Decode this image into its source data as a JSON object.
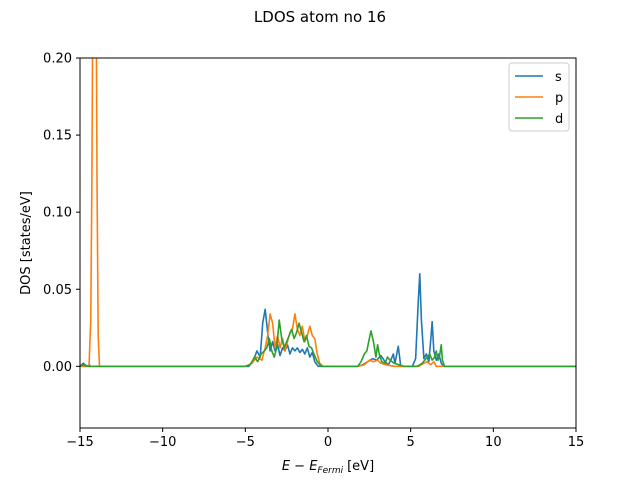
{
  "chart_data": {
    "type": "line",
    "title": "LDOS atom no 16",
    "xlabel_main": "E − E",
    "xlabel_sub": "Fermi",
    "xlabel_unit": "[eV]",
    "ylabel": "DOS [states/eV]",
    "xlim": [
      -15,
      15
    ],
    "ylim": [
      -0.04,
      0.2
    ],
    "xticks": [
      -15,
      -10,
      -5,
      0,
      5,
      10,
      15
    ],
    "xtick_labels": [
      "−15",
      "−10",
      "−5",
      "0",
      "5",
      "10",
      "15"
    ],
    "yticks": [
      0.0,
      0.05,
      0.1,
      0.15,
      0.2
    ],
    "ytick_labels": [
      "0.00",
      "0.05",
      "0.10",
      "0.15",
      "0.20"
    ],
    "grid": false,
    "legend_position": "top-right",
    "series": [
      {
        "name": "s",
        "color": "#1f77b4",
        "points": [
          [
            -15,
            0.0
          ],
          [
            -14.9,
            0.001
          ],
          [
            -14.8,
            0.002
          ],
          [
            -14.7,
            0.001
          ],
          [
            -14.55,
            0.0
          ],
          [
            -14.45,
            0.001
          ],
          [
            -14.35,
            0.0
          ],
          [
            -14.2,
            0.0
          ],
          [
            -10,
            0.0
          ],
          [
            -5.2,
            0.0
          ],
          [
            -4.8,
            0.0
          ],
          [
            -4.5,
            0.004
          ],
          [
            -4.3,
            0.01
          ],
          [
            -4.1,
            0.006
          ],
          [
            -3.95,
            0.028
          ],
          [
            -3.8,
            0.037
          ],
          [
            -3.65,
            0.022
          ],
          [
            -3.5,
            0.01
          ],
          [
            -3.35,
            0.016
          ],
          [
            -3.2,
            0.01
          ],
          [
            -3.05,
            0.014
          ],
          [
            -2.9,
            0.007
          ],
          [
            -2.75,
            0.012
          ],
          [
            -2.6,
            0.01
          ],
          [
            -2.45,
            0.014
          ],
          [
            -2.3,
            0.008
          ],
          [
            -2.15,
            0.012
          ],
          [
            -2.0,
            0.01
          ],
          [
            -1.85,
            0.012
          ],
          [
            -1.7,
            0.009
          ],
          [
            -1.55,
            0.011
          ],
          [
            -1.4,
            0.008
          ],
          [
            -1.25,
            0.012
          ],
          [
            -1.1,
            0.006
          ],
          [
            -0.95,
            0.009
          ],
          [
            -0.8,
            0.003
          ],
          [
            -0.6,
            0.0
          ],
          [
            1.8,
            0.0
          ],
          [
            2.1,
            0.001
          ],
          [
            2.4,
            0.003
          ],
          [
            2.7,
            0.005
          ],
          [
            2.95,
            0.004
          ],
          [
            3.2,
            0.007
          ],
          [
            3.45,
            0.003
          ],
          [
            3.65,
            0.001
          ],
          [
            3.8,
            0.004
          ],
          [
            3.95,
            0.008
          ],
          [
            4.05,
            0.002
          ],
          [
            4.25,
            0.013
          ],
          [
            4.4,
            0.0
          ],
          [
            4.6,
            0.0
          ],
          [
            5.1,
            0.0
          ],
          [
            5.3,
            0.005
          ],
          [
            5.45,
            0.04
          ],
          [
            5.55,
            0.06
          ],
          [
            5.65,
            0.03
          ],
          [
            5.8,
            0.005
          ],
          [
            5.95,
            0.008
          ],
          [
            6.1,
            0.003
          ],
          [
            6.22,
            0.018
          ],
          [
            6.3,
            0.029
          ],
          [
            6.4,
            0.01
          ],
          [
            6.55,
            0.004
          ],
          [
            6.7,
            0.008
          ],
          [
            6.85,
            0.002
          ],
          [
            7.0,
            0.0
          ],
          [
            15,
            0.0
          ]
        ]
      },
      {
        "name": "p",
        "color": "#ff7f0e",
        "points": [
          [
            -15,
            0.0
          ],
          [
            -14.6,
            0.0
          ],
          [
            -14.45,
            0.001
          ],
          [
            -14.35,
            0.03
          ],
          [
            -14.28,
            0.12
          ],
          [
            -14.2,
            0.3
          ],
          [
            -14.05,
            0.3
          ],
          [
            -13.97,
            0.12
          ],
          [
            -13.9,
            0.02
          ],
          [
            -13.82,
            0.0
          ],
          [
            -10,
            0.0
          ],
          [
            -5.0,
            0.0
          ],
          [
            -4.6,
            0.002
          ],
          [
            -4.3,
            0.006
          ],
          [
            -4.0,
            0.004
          ],
          [
            -3.8,
            0.012
          ],
          [
            -3.65,
            0.02
          ],
          [
            -3.5,
            0.034
          ],
          [
            -3.35,
            0.028
          ],
          [
            -3.2,
            0.012
          ],
          [
            -3.05,
            0.02
          ],
          [
            -2.9,
            0.012
          ],
          [
            -2.75,
            0.018
          ],
          [
            -2.6,
            0.01
          ],
          [
            -2.45,
            0.016
          ],
          [
            -2.3,
            0.022
          ],
          [
            -2.15,
            0.024
          ],
          [
            -2.0,
            0.034
          ],
          [
            -1.85,
            0.024
          ],
          [
            -1.7,
            0.02
          ],
          [
            -1.55,
            0.026
          ],
          [
            -1.4,
            0.016
          ],
          [
            -1.25,
            0.02
          ],
          [
            -1.1,
            0.026
          ],
          [
            -0.95,
            0.02
          ],
          [
            -0.8,
            0.018
          ],
          [
            -0.65,
            0.008
          ],
          [
            -0.5,
            0.002
          ],
          [
            -0.3,
            0.0
          ],
          [
            1.8,
            0.0
          ],
          [
            2.2,
            0.001
          ],
          [
            2.5,
            0.004
          ],
          [
            2.75,
            0.003
          ],
          [
            3.0,
            0.004
          ],
          [
            3.2,
            0.002
          ],
          [
            3.5,
            0.001
          ],
          [
            4.0,
            0.0
          ],
          [
            5.5,
            0.0
          ],
          [
            5.8,
            0.002
          ],
          [
            6.0,
            0.003
          ],
          [
            6.2,
            0.001
          ],
          [
            6.4,
            0.003
          ],
          [
            6.55,
            0.0
          ],
          [
            15,
            0.0
          ]
        ]
      },
      {
        "name": "d",
        "color": "#2ca02c",
        "points": [
          [
            -15,
            0.0
          ],
          [
            -14.8,
            0.001
          ],
          [
            -14.6,
            0.0
          ],
          [
            -10,
            0.0
          ],
          [
            -5.0,
            0.0
          ],
          [
            -4.7,
            0.001
          ],
          [
            -4.45,
            0.006
          ],
          [
            -4.25,
            0.003
          ],
          [
            -4.05,
            0.008
          ],
          [
            -3.85,
            0.01
          ],
          [
            -3.7,
            0.012
          ],
          [
            -3.55,
            0.018
          ],
          [
            -3.4,
            0.01
          ],
          [
            -3.25,
            0.006
          ],
          [
            -3.1,
            0.012
          ],
          [
            -2.95,
            0.03
          ],
          [
            -2.8,
            0.018
          ],
          [
            -2.65,
            0.012
          ],
          [
            -2.5,
            0.016
          ],
          [
            -2.35,
            0.02
          ],
          [
            -2.2,
            0.024
          ],
          [
            -2.05,
            0.018
          ],
          [
            -1.9,
            0.022
          ],
          [
            -1.75,
            0.028
          ],
          [
            -1.6,
            0.022
          ],
          [
            -1.45,
            0.016
          ],
          [
            -1.3,
            0.02
          ],
          [
            -1.15,
            0.013
          ],
          [
            -1.0,
            0.012
          ],
          [
            -0.85,
            0.008
          ],
          [
            -0.65,
            0.003
          ],
          [
            -0.4,
            0.0
          ],
          [
            1.8,
            0.0
          ],
          [
            2.0,
            0.003
          ],
          [
            2.2,
            0.008
          ],
          [
            2.35,
            0.01
          ],
          [
            2.5,
            0.018
          ],
          [
            2.6,
            0.023
          ],
          [
            2.75,
            0.016
          ],
          [
            2.9,
            0.006
          ],
          [
            3.0,
            0.014
          ],
          [
            3.1,
            0.008
          ],
          [
            3.25,
            0.003
          ],
          [
            3.45,
            0.002
          ],
          [
            3.6,
            0.006
          ],
          [
            3.75,
            0.004
          ],
          [
            4.0,
            0.002
          ],
          [
            4.3,
            0.001
          ],
          [
            4.6,
            0.0
          ],
          [
            5.4,
            0.0
          ],
          [
            5.7,
            0.002
          ],
          [
            6.0,
            0.006
          ],
          [
            6.15,
            0.008
          ],
          [
            6.3,
            0.004
          ],
          [
            6.45,
            0.006
          ],
          [
            6.55,
            0.01
          ],
          [
            6.65,
            0.004
          ],
          [
            6.75,
            0.007
          ],
          [
            6.85,
            0.014
          ],
          [
            6.92,
            0.004
          ],
          [
            7.05,
            0.0
          ],
          [
            15,
            0.0
          ]
        ]
      }
    ]
  }
}
